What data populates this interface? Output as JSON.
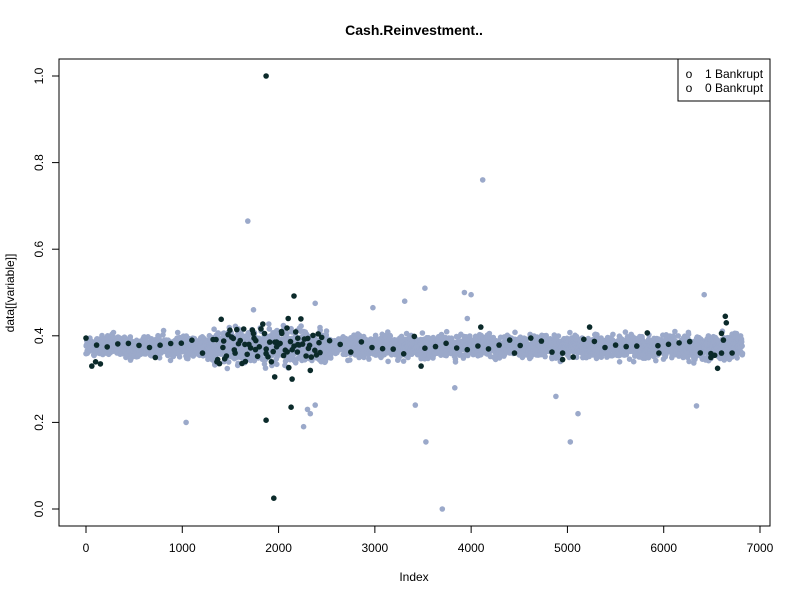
{
  "chart_data": {
    "type": "scatter",
    "title": "Cash.Reinvestment..",
    "xlabel": "Index",
    "ylabel": "data[[variable]]",
    "xlim": [
      0,
      7000
    ],
    "ylim": [
      0,
      1.0
    ],
    "x_ticks": [
      "0",
      "1000",
      "2000",
      "3000",
      "4000",
      "5000",
      "6000",
      "7000"
    ],
    "y_ticks": [
      "0.0",
      "0.2",
      "0.4",
      "0.6",
      "0.8",
      "1.0"
    ],
    "legend": {
      "position": "top-right",
      "entries": [
        {
          "symbol": "o",
          "label": "1 Bankrupt"
        },
        {
          "symbol": "o",
          "label": "0 Bankrupt"
        }
      ]
    },
    "colors": {
      "bankrupt_1": "#0b2a2a",
      "bankrupt_0": "#9ba9ca"
    },
    "n_points": 6819,
    "main_band": {
      "center": 0.375,
      "spread": 0.02
    },
    "series": [
      {
        "name": "0 Bankrupt",
        "outliers": [
          {
            "x": 1040,
            "y": 0.2
          },
          {
            "x": 1680,
            "y": 0.665
          },
          {
            "x": 2260,
            "y": 0.19
          },
          {
            "x": 3420,
            "y": 0.24
          },
          {
            "x": 3530,
            "y": 0.155
          },
          {
            "x": 3520,
            "y": 0.51
          },
          {
            "x": 3700,
            "y": 0.0
          },
          {
            "x": 3930,
            "y": 0.5
          },
          {
            "x": 4000,
            "y": 0.495
          },
          {
            "x": 4120,
            "y": 0.76
          },
          {
            "x": 4880,
            "y": 0.26
          },
          {
            "x": 5030,
            "y": 0.155
          },
          {
            "x": 5110,
            "y": 0.22
          },
          {
            "x": 6340,
            "y": 0.238
          },
          {
            "x": 6420,
            "y": 0.495
          },
          {
            "x": 1740,
            "y": 0.46
          },
          {
            "x": 2980,
            "y": 0.465
          },
          {
            "x": 3310,
            "y": 0.48
          },
          {
            "x": 2380,
            "y": 0.475
          },
          {
            "x": 2330,
            "y": 0.22
          },
          {
            "x": 2380,
            "y": 0.24
          },
          {
            "x": 2300,
            "y": 0.23
          },
          {
            "x": 3830,
            "y": 0.28
          },
          {
            "x": 3960,
            "y": 0.44
          }
        ]
      },
      {
        "name": "1 Bankrupt",
        "outliers": [
          {
            "x": 1870,
            "y": 1.0
          },
          {
            "x": 1950,
            "y": 0.025
          },
          {
            "x": 1870,
            "y": 0.205
          },
          {
            "x": 2130,
            "y": 0.235
          },
          {
            "x": 2160,
            "y": 0.492
          },
          {
            "x": 2100,
            "y": 0.44
          },
          {
            "x": 4100,
            "y": 0.42
          },
          {
            "x": 5230,
            "y": 0.42
          },
          {
            "x": 6640,
            "y": 0.445
          },
          {
            "x": 6650,
            "y": 0.43
          },
          {
            "x": 6560,
            "y": 0.325
          },
          {
            "x": 60,
            "y": 0.33
          },
          {
            "x": 100,
            "y": 0.34
          },
          {
            "x": 150,
            "y": 0.335
          },
          {
            "x": 720,
            "y": 0.35
          },
          {
            "x": 1360,
            "y": 0.34
          },
          {
            "x": 1960,
            "y": 0.305
          },
          {
            "x": 2140,
            "y": 0.3
          },
          {
            "x": 2330,
            "y": 0.32
          },
          {
            "x": 3480,
            "y": 0.33
          },
          {
            "x": 4450,
            "y": 0.36
          },
          {
            "x": 4950,
            "y": 0.345
          },
          {
            "x": 5950,
            "y": 0.36
          },
          {
            "x": 6490,
            "y": 0.35
          },
          {
            "x": 6530,
            "y": 0.355
          },
          {
            "x": 6600,
            "y": 0.36
          },
          {
            "x": 6620,
            "y": 0.39
          },
          {
            "x": 2030,
            "y": 0.41
          },
          {
            "x": 1740,
            "y": 0.405
          },
          {
            "x": 2200,
            "y": 0.38
          }
        ]
      }
    ]
  }
}
